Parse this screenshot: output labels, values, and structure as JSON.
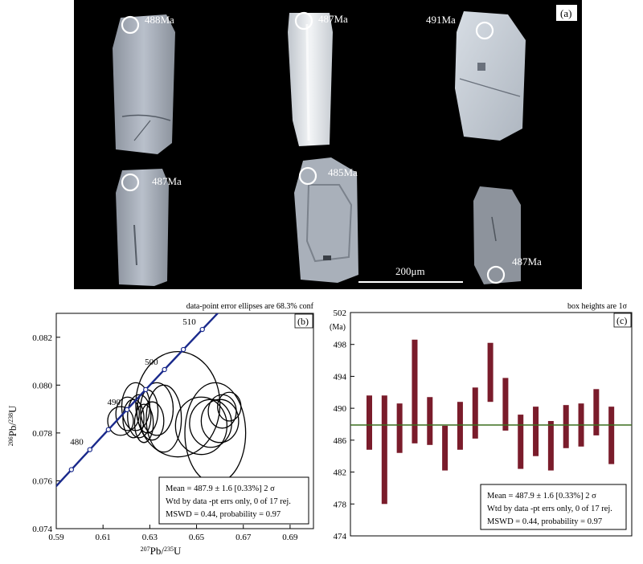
{
  "panel_a": {
    "label": "(a)",
    "scale_bar": "200μm",
    "ages": [
      "488Ma",
      "487Ma",
      "491Ma",
      "487Ma",
      "485Ma",
      "487Ma"
    ]
  },
  "chart_data": [
    {
      "type": "scatter",
      "panel_label": "(b)",
      "note": "data-point error ellipses are 68.3% conf",
      "xlabel": "207Pb/235U",
      "ylabel": "206Pb/238U",
      "xlim": [
        0.59,
        0.7
      ],
      "ylim": [
        0.074,
        0.083
      ],
      "x_ticks": [
        0.59,
        0.61,
        0.63,
        0.65,
        0.67,
        0.69
      ],
      "y_ticks": [
        0.074,
        0.076,
        0.078,
        0.08,
        0.082
      ],
      "concordia_ages": [
        480,
        490,
        500,
        510
      ],
      "ellipses": [
        {
          "x": 0.6175,
          "y": 0.0785,
          "rx": 0.0055,
          "ry": 0.0006
        },
        {
          "x": 0.6205,
          "y": 0.0788,
          "rx": 0.005,
          "ry": 0.0007
        },
        {
          "x": 0.623,
          "y": 0.0786,
          "rx": 0.0045,
          "ry": 0.0008
        },
        {
          "x": 0.6255,
          "y": 0.0787,
          "rx": 0.005,
          "ry": 0.0009
        },
        {
          "x": 0.6275,
          "y": 0.0784,
          "rx": 0.004,
          "ry": 0.0008
        },
        {
          "x": 0.629,
          "y": 0.0789,
          "rx": 0.0045,
          "ry": 0.0009
        },
        {
          "x": 0.631,
          "y": 0.0785,
          "rx": 0.005,
          "ry": 0.0008
        },
        {
          "x": 0.624,
          "y": 0.0791,
          "rx": 0.006,
          "ry": 0.001
        },
        {
          "x": 0.633,
          "y": 0.079,
          "rx": 0.007,
          "ry": 0.0011
        },
        {
          "x": 0.642,
          "y": 0.0792,
          "rx": 0.018,
          "ry": 0.0022
        },
        {
          "x": 0.652,
          "y": 0.0783,
          "rx": 0.011,
          "ry": 0.0012
        },
        {
          "x": 0.656,
          "y": 0.0784,
          "rx": 0.009,
          "ry": 0.001
        },
        {
          "x": 0.66,
          "y": 0.0785,
          "rx": 0.008,
          "ry": 0.0009
        },
        {
          "x": 0.661,
          "y": 0.0789,
          "rx": 0.006,
          "ry": 0.0007
        },
        {
          "x": 0.664,
          "y": 0.0791,
          "rx": 0.005,
          "ry": 0.0006
        },
        {
          "x": 0.658,
          "y": 0.078,
          "rx": 0.013,
          "ry": 0.0021
        },
        {
          "x": 0.636,
          "y": 0.0786,
          "rx": 0.0075,
          "ry": 0.0014
        }
      ],
      "stats": {
        "line1": "Mean  = 487.9 ± 1.6  [0.33%]  2 σ",
        "line2": "Wtd by data -pt errs only, 0 of 17 rej.",
        "line3": "MSWD = 0.44, probability = 0.97"
      }
    },
    {
      "type": "bar",
      "panel_label": "(c)",
      "note": "box heights are 1σ",
      "ylabel": "(Ma)",
      "ylim": [
        474,
        502
      ],
      "y_ticks": [
        474,
        478,
        482,
        486,
        490,
        494,
        498,
        502
      ],
      "mean": 487.9,
      "bars": [
        {
          "low": 484.8,
          "high": 491.6
        },
        {
          "low": 478.0,
          "high": 491.6
        },
        {
          "low": 484.4,
          "high": 490.6
        },
        {
          "low": 485.6,
          "high": 498.6
        },
        {
          "low": 485.4,
          "high": 491.4
        },
        {
          "low": 482.2,
          "high": 487.8
        },
        {
          "low": 484.8,
          "high": 490.8
        },
        {
          "low": 486.2,
          "high": 492.6
        },
        {
          "low": 490.8,
          "high": 498.2
        },
        {
          "low": 487.2,
          "high": 493.8
        },
        {
          "low": 482.4,
          "high": 489.2
        },
        {
          "low": 484.0,
          "high": 490.2
        },
        {
          "low": 482.2,
          "high": 488.4
        },
        {
          "low": 485.0,
          "high": 490.4
        },
        {
          "low": 485.2,
          "high": 490.6
        },
        {
          "low": 486.6,
          "high": 492.4
        },
        {
          "low": 483.0,
          "high": 490.2
        }
      ],
      "stats": {
        "line1": "Mean  = 487.9 ± 1.6  [0.33%]  2 σ",
        "line2": "Wtd by data -pt errs only, 0 of 17 rej.",
        "line3": "MSWD = 0.44, probability = 0.97"
      },
      "colors": {
        "bar": "#7a1c2b",
        "mean_line": "#3b6e1e"
      }
    }
  ],
  "colors": {
    "concordia": "#1a2a8c"
  }
}
